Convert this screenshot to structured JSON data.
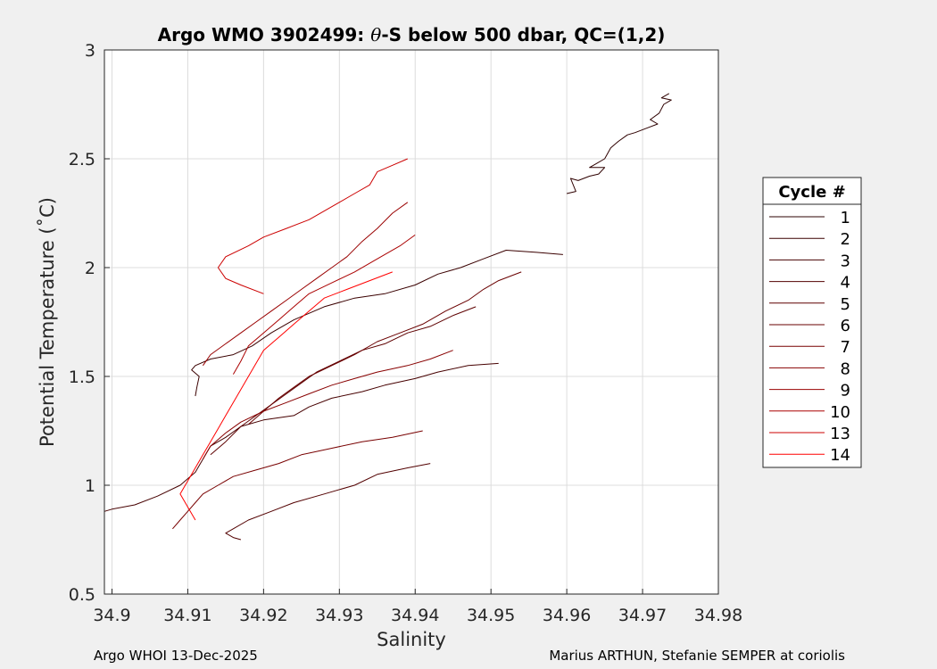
{
  "chart_data": {
    "type": "line",
    "title": {
      "prefix": "Argo WMO 3902499: ",
      "theta": "θ",
      "suffix": "-S below 500 dbar,  QC=(1,2)"
    },
    "xlabel": "Salinity",
    "ylabel": "Potential Temperature (˚C)",
    "xlim": [
      34.899,
      34.98
    ],
    "ylim": [
      0.5,
      3.0
    ],
    "xticks": [
      "34.9",
      "34.91",
      "34.92",
      "34.93",
      "34.94",
      "34.95",
      "34.96",
      "34.97",
      "34.98"
    ],
    "yticks": [
      "0.5",
      "1",
      "1.5",
      "2",
      "2.5",
      "3"
    ],
    "grid": true,
    "legend": {
      "title": "Cycle #",
      "placement": "outside-right"
    },
    "series": [
      {
        "name": "1",
        "color": "#2e0000",
        "points": [
          [
            34.9735,
            2.8
          ],
          [
            34.9725,
            2.78
          ],
          [
            34.9738,
            2.77
          ],
          [
            34.9728,
            2.75
          ],
          [
            34.9722,
            2.71
          ],
          [
            34.971,
            2.68
          ],
          [
            34.972,
            2.66
          ],
          [
            34.9705,
            2.64
          ],
          [
            34.969,
            2.62
          ],
          [
            34.968,
            2.61
          ],
          [
            34.9668,
            2.58
          ],
          [
            34.9658,
            2.55
          ],
          [
            34.965,
            2.5
          ],
          [
            34.964,
            2.48
          ],
          [
            34.963,
            2.46
          ],
          [
            34.965,
            2.46
          ],
          [
            34.9642,
            2.43
          ],
          [
            34.963,
            2.42
          ],
          [
            34.9615,
            2.4
          ],
          [
            34.9605,
            2.41
          ],
          [
            34.9612,
            2.35
          ],
          [
            34.96,
            2.34
          ]
        ]
      },
      {
        "name": "2",
        "color": "#3a0000",
        "points": [
          [
            34.9595,
            2.06
          ],
          [
            34.956,
            2.07
          ],
          [
            34.952,
            2.08
          ],
          [
            34.949,
            2.04
          ],
          [
            34.946,
            2.0
          ],
          [
            34.943,
            1.97
          ],
          [
            34.94,
            1.92
          ],
          [
            34.936,
            1.88
          ],
          [
            34.932,
            1.86
          ],
          [
            34.928,
            1.82
          ],
          [
            34.924,
            1.76
          ],
          [
            34.921,
            1.7
          ],
          [
            34.9185,
            1.64
          ],
          [
            34.916,
            1.6
          ],
          [
            34.913,
            1.58
          ],
          [
            34.911,
            1.55
          ],
          [
            34.9105,
            1.53
          ],
          [
            34.9115,
            1.5
          ],
          [
            34.9112,
            1.45
          ],
          [
            34.911,
            1.41
          ]
        ]
      },
      {
        "name": "3",
        "color": "#460000",
        "points": [
          [
            34.951,
            1.56
          ],
          [
            34.947,
            1.55
          ],
          [
            34.943,
            1.52
          ],
          [
            34.94,
            1.49
          ],
          [
            34.936,
            1.46
          ],
          [
            34.933,
            1.43
          ],
          [
            34.929,
            1.4
          ],
          [
            34.926,
            1.36
          ],
          [
            34.924,
            1.32
          ],
          [
            34.92,
            1.3
          ],
          [
            34.917,
            1.27
          ],
          [
            34.915,
            1.22
          ],
          [
            34.913,
            1.18
          ],
          [
            34.912,
            1.12
          ],
          [
            34.911,
            1.06
          ],
          [
            34.909,
            1.0
          ],
          [
            34.906,
            0.95
          ],
          [
            34.903,
            0.91
          ],
          [
            34.9,
            0.89
          ],
          [
            34.899,
            0.88
          ]
        ]
      },
      {
        "name": "4",
        "color": "#520000",
        "points": [
          [
            34.942,
            1.1
          ],
          [
            34.939,
            1.08
          ],
          [
            34.935,
            1.05
          ],
          [
            34.932,
            1.0
          ],
          [
            34.928,
            0.96
          ],
          [
            34.924,
            0.92
          ],
          [
            34.921,
            0.88
          ],
          [
            34.918,
            0.84
          ],
          [
            34.916,
            0.8
          ],
          [
            34.915,
            0.78
          ],
          [
            34.916,
            0.76
          ],
          [
            34.917,
            0.75
          ]
        ]
      },
      {
        "name": "5",
        "color": "#5e0000",
        "points": [
          [
            34.948,
            1.82
          ],
          [
            34.945,
            1.78
          ],
          [
            34.942,
            1.73
          ],
          [
            34.939,
            1.7
          ],
          [
            34.936,
            1.65
          ],
          [
            34.933,
            1.62
          ],
          [
            34.93,
            1.57
          ],
          [
            34.927,
            1.52
          ],
          [
            34.925,
            1.47
          ],
          [
            34.923,
            1.42
          ],
          [
            34.921,
            1.37
          ],
          [
            34.919,
            1.32
          ],
          [
            34.917,
            1.27
          ],
          [
            34.915,
            1.2
          ],
          [
            34.913,
            1.14
          ]
        ]
      },
      {
        "name": "6",
        "color": "#6a0000",
        "points": [
          [
            34.954,
            1.98
          ],
          [
            34.951,
            1.94
          ],
          [
            34.949,
            1.9
          ],
          [
            34.947,
            1.85
          ],
          [
            34.944,
            1.8
          ],
          [
            34.941,
            1.74
          ],
          [
            34.938,
            1.7
          ],
          [
            34.935,
            1.66
          ],
          [
            34.932,
            1.6
          ],
          [
            34.929,
            1.55
          ],
          [
            34.926,
            1.5
          ],
          [
            34.924,
            1.45
          ],
          [
            34.922,
            1.4
          ],
          [
            34.92,
            1.34
          ],
          [
            34.918,
            1.28
          ]
        ]
      },
      {
        "name": "7",
        "color": "#780000",
        "points": [
          [
            34.941,
            1.25
          ],
          [
            34.937,
            1.22
          ],
          [
            34.933,
            1.2
          ],
          [
            34.929,
            1.17
          ],
          [
            34.925,
            1.14
          ],
          [
            34.922,
            1.1
          ],
          [
            34.919,
            1.07
          ],
          [
            34.916,
            1.04
          ],
          [
            34.914,
            1.0
          ],
          [
            34.912,
            0.96
          ],
          [
            34.911,
            0.92
          ],
          [
            34.91,
            0.88
          ],
          [
            34.909,
            0.84
          ],
          [
            34.908,
            0.8
          ]
        ]
      },
      {
        "name": "8",
        "color": "#880000",
        "points": [
          [
            34.945,
            1.62
          ],
          [
            34.942,
            1.58
          ],
          [
            34.939,
            1.55
          ],
          [
            34.935,
            1.52
          ],
          [
            34.932,
            1.49
          ],
          [
            34.929,
            1.46
          ],
          [
            34.926,
            1.42
          ],
          [
            34.923,
            1.38
          ],
          [
            34.92,
            1.34
          ],
          [
            34.917,
            1.29
          ],
          [
            34.915,
            1.24
          ],
          [
            34.913,
            1.18
          ],
          [
            34.912,
            1.12
          ]
        ]
      },
      {
        "name": "9",
        "color": "#990000",
        "points": [
          [
            34.939,
            2.3
          ],
          [
            34.937,
            2.25
          ],
          [
            34.935,
            2.18
          ],
          [
            34.933,
            2.12
          ],
          [
            34.931,
            2.05
          ],
          [
            34.929,
            2.0
          ],
          [
            34.927,
            1.95
          ],
          [
            34.925,
            1.9
          ],
          [
            34.923,
            1.85
          ],
          [
            34.921,
            1.8
          ],
          [
            34.919,
            1.75
          ],
          [
            34.917,
            1.7
          ],
          [
            34.915,
            1.65
          ],
          [
            34.913,
            1.6
          ],
          [
            34.912,
            1.55
          ]
        ]
      },
      {
        "name": "10",
        "color": "#aa0000",
        "points": [
          [
            34.94,
            2.15
          ],
          [
            34.938,
            2.1
          ],
          [
            34.935,
            2.04
          ],
          [
            34.932,
            1.98
          ],
          [
            34.929,
            1.93
          ],
          [
            34.926,
            1.88
          ],
          [
            34.924,
            1.82
          ],
          [
            34.922,
            1.76
          ],
          [
            34.92,
            1.7
          ],
          [
            34.918,
            1.64
          ],
          [
            34.917,
            1.57
          ],
          [
            34.916,
            1.51
          ]
        ]
      },
      {
        "name": "13",
        "color": "#cc0000",
        "points": [
          [
            34.939,
            2.5
          ],
          [
            34.937,
            2.47
          ],
          [
            34.935,
            2.44
          ],
          [
            34.934,
            2.38
          ],
          [
            34.932,
            2.34
          ],
          [
            34.93,
            2.3
          ],
          [
            34.928,
            2.26
          ],
          [
            34.926,
            2.22
          ],
          [
            34.923,
            2.18
          ],
          [
            34.92,
            2.14
          ],
          [
            34.918,
            2.1
          ],
          [
            34.915,
            2.05
          ],
          [
            34.914,
            2.0
          ],
          [
            34.915,
            1.95
          ],
          [
            34.917,
            1.92
          ],
          [
            34.92,
            1.88
          ]
        ]
      },
      {
        "name": "14",
        "color": "#ff0000",
        "points": [
          [
            34.937,
            1.98
          ],
          [
            34.934,
            1.94
          ],
          [
            34.931,
            1.9
          ],
          [
            34.928,
            1.86
          ],
          [
            34.926,
            1.8
          ],
          [
            34.924,
            1.74
          ],
          [
            34.922,
            1.68
          ],
          [
            34.92,
            1.62
          ],
          [
            34.919,
            1.56
          ],
          [
            34.918,
            1.5
          ],
          [
            34.917,
            1.44
          ],
          [
            34.916,
            1.38
          ],
          [
            34.915,
            1.32
          ],
          [
            34.914,
            1.26
          ],
          [
            34.913,
            1.2
          ],
          [
            34.912,
            1.14
          ],
          [
            34.911,
            1.08
          ],
          [
            34.91,
            1.02
          ],
          [
            34.909,
            0.96
          ],
          [
            34.91,
            0.9
          ],
          [
            34.911,
            0.84
          ]
        ]
      }
    ]
  },
  "footer": {
    "left": "Argo WHOI 13-Dec-2025",
    "right": "Marius ARTHUN, Stefanie SEMPER at coriolis"
  }
}
